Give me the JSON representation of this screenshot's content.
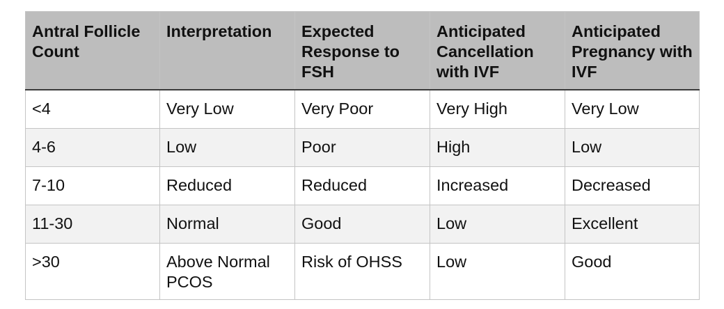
{
  "table": {
    "headers": [
      "Antral Follicle Count",
      "Interpretation",
      "Expected Response to FSH",
      "Anticipated Cancellation with IVF",
      "Anticipated Pregnancy with IVF"
    ],
    "rows": [
      [
        "<4",
        "Very Low",
        "Very Poor",
        "Very High",
        "Very Low"
      ],
      [
        "4-6",
        "Low",
        "Poor",
        "High",
        "Low"
      ],
      [
        "7-10",
        "Reduced",
        "Reduced",
        "Increased",
        "Decreased"
      ],
      [
        "11-30",
        "Normal",
        "Good",
        "Low",
        "Excellent"
      ],
      [
        ">30",
        "Above Normal PCOS",
        "Risk of OHSS",
        "Low",
        "Good"
      ]
    ]
  }
}
